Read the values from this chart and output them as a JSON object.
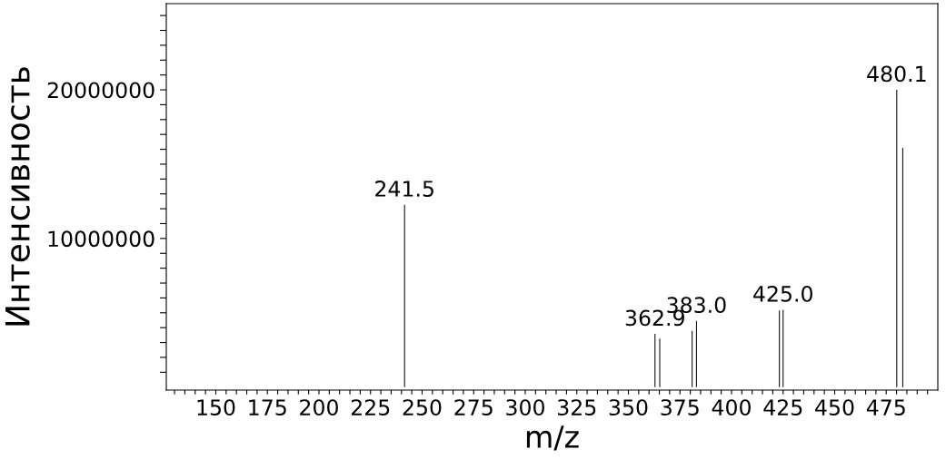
{
  "chart_data": {
    "type": "bar",
    "xlabel": "m/z",
    "ylabel": "Интенсивность",
    "x": [
      241.5,
      362.9,
      365.2,
      380.9,
      383.0,
      423.2,
      425.0,
      480.1,
      483.0
    ],
    "values": [
      12270000,
      3580000,
      3270000,
      3780000,
      4450000,
      5160000,
      5200000,
      20000000,
      16100000
    ],
    "color": "#000000",
    "annotations": [
      {
        "text": "241.5",
        "x": 241.5,
        "y": 12270000
      },
      {
        "text": "362.9",
        "x": 362.9,
        "y": 3580000
      },
      {
        "text": "383.0",
        "x": 383.0,
        "y": 4450000
      },
      {
        "text": "425.0",
        "x": 425.0,
        "y": 5200000
      },
      {
        "text": "480.1",
        "x": 480.1,
        "y": 20000000
      }
    ],
    "xlim": [
      126,
      500
    ],
    "ylim": [
      -200000,
      25800000
    ],
    "xticks": [
      {
        "value": 130,
        "label": null
      },
      {
        "value": 135,
        "label": null
      },
      {
        "value": 140,
        "label": null
      },
      {
        "value": 145,
        "label": null
      },
      150,
      {
        "value": 155,
        "label": null
      },
      {
        "value": 160,
        "label": null
      },
      {
        "value": 165,
        "label": null
      },
      {
        "value": 170,
        "label": null
      },
      175,
      {
        "value": 180,
        "label": null
      },
      {
        "value": 185,
        "label": null
      },
      {
        "value": 190,
        "label": null
      },
      {
        "value": 195,
        "label": null
      },
      200,
      {
        "value": 205,
        "label": null
      },
      {
        "value": 210,
        "label": null
      },
      {
        "value": 215,
        "label": null
      },
      {
        "value": 220,
        "label": null
      },
      225,
      {
        "value": 230,
        "label": null
      },
      {
        "value": 235,
        "label": null
      },
      {
        "value": 240,
        "label": null
      },
      {
        "value": 245,
        "label": null
      },
      250,
      {
        "value": 255,
        "label": null
      },
      {
        "value": 260,
        "label": null
      },
      {
        "value": 265,
        "label": null
      },
      {
        "value": 270,
        "label": null
      },
      275,
      {
        "value": 280,
        "label": null
      },
      {
        "value": 285,
        "label": null
      },
      {
        "value": 290,
        "label": null
      },
      {
        "value": 295,
        "label": null
      },
      300,
      {
        "value": 305,
        "label": null
      },
      {
        "value": 310,
        "label": null
      },
      {
        "value": 315,
        "label": null
      },
      {
        "value": 320,
        "label": null
      },
      325,
      {
        "value": 330,
        "label": null
      },
      {
        "value": 335,
        "label": null
      },
      {
        "value": 340,
        "label": null
      },
      {
        "value": 345,
        "label": null
      },
      350,
      {
        "value": 355,
        "label": null
      },
      {
        "value": 360,
        "label": null
      },
      {
        "value": 365,
        "label": null
      },
      {
        "value": 370,
        "label": null
      },
      375,
      {
        "value": 380,
        "label": null
      },
      {
        "value": 385,
        "label": null
      },
      {
        "value": 390,
        "label": null
      },
      {
        "value": 395,
        "label": null
      },
      400,
      {
        "value": 405,
        "label": null
      },
      {
        "value": 410,
        "label": null
      },
      {
        "value": 415,
        "label": null
      },
      {
        "value": 420,
        "label": null
      },
      425,
      {
        "value": 430,
        "label": null
      },
      {
        "value": 435,
        "label": null
      },
      {
        "value": 440,
        "label": null
      },
      {
        "value": 445,
        "label": null
      },
      450,
      {
        "value": 455,
        "label": null
      },
      {
        "value": 460,
        "label": null
      },
      {
        "value": 465,
        "label": null
      },
      {
        "value": 470,
        "label": null
      },
      475,
      {
        "value": 480,
        "label": null
      },
      {
        "value": 485,
        "label": null
      },
      {
        "value": 490,
        "label": null
      },
      {
        "value": 495,
        "label": null
      }
    ],
    "yticks": [
      {
        "value": 1000000,
        "label": null
      },
      {
        "value": 2000000,
        "label": null
      },
      {
        "value": 3000000,
        "label": null
      },
      {
        "value": 4000000,
        "label": null
      },
      {
        "value": 5000000,
        "label": null
      },
      {
        "value": 6000000,
        "label": null
      },
      {
        "value": 7000000,
        "label": null
      },
      {
        "value": 8000000,
        "label": null
      },
      {
        "value": 9000000,
        "label": null
      },
      10000000,
      {
        "value": 11000000,
        "label": null
      },
      {
        "value": 12000000,
        "label": null
      },
      {
        "value": 13000000,
        "label": null
      },
      {
        "value": 14000000,
        "label": null
      },
      {
        "value": 15000000,
        "label": null
      },
      {
        "value": 16000000,
        "label": null
      },
      {
        "value": 17000000,
        "label": null
      },
      {
        "value": 18000000,
        "label": null
      },
      {
        "value": 19000000,
        "label": null
      },
      20000000,
      {
        "value": 21000000,
        "label": null
      },
      {
        "value": 22000000,
        "label": null
      },
      {
        "value": 23000000,
        "label": null
      },
      {
        "value": 24000000,
        "label": null
      },
      {
        "value": 25000000,
        "label": null
      }
    ],
    "grid": false
  }
}
